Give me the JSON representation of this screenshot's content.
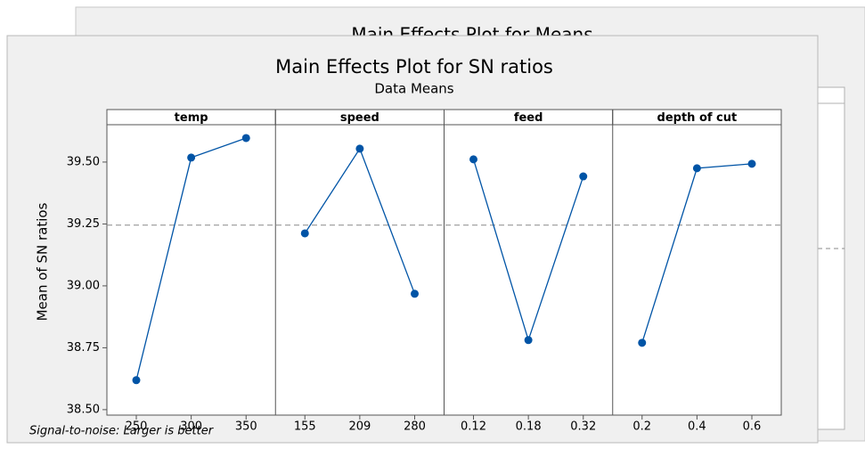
{
  "background_title": "Main Effects Plot for Means",
  "chart_data": {
    "type": "line",
    "title": "Main Effects Plot for SN ratios",
    "subtitle": "Data Means",
    "ylabel": "Mean of SN ratios",
    "footnote": "Signal-to-noise: Larger is better",
    "color": "#0054a6",
    "reference_line": 39.245,
    "ylim": [
      38.478,
      39.712
    ],
    "yticks": [
      {
        "value": 38.5,
        "label": "38.50"
      },
      {
        "value": 38.75,
        "label": "38.75"
      },
      {
        "value": 39.0,
        "label": "39.00"
      },
      {
        "value": 39.25,
        "label": "39.25"
      },
      {
        "value": 39.5,
        "label": "39.50"
      }
    ],
    "panels": [
      {
        "name": "temp",
        "categories": [
          "250",
          "300",
          "350"
        ],
        "values": [
          38.619,
          39.518,
          39.597
        ]
      },
      {
        "name": "speed",
        "categories": [
          "155",
          "209",
          "280"
        ],
        "values": [
          39.212,
          39.554,
          38.968
        ]
      },
      {
        "name": "feed",
        "categories": [
          "0.12",
          "0.18",
          "0.32"
        ],
        "values": [
          39.511,
          38.781,
          39.442
        ]
      },
      {
        "name": "depth of cut",
        "categories": [
          "0.2",
          "0.4",
          "0.6"
        ],
        "values": [
          38.77,
          39.475,
          39.493
        ]
      }
    ]
  }
}
